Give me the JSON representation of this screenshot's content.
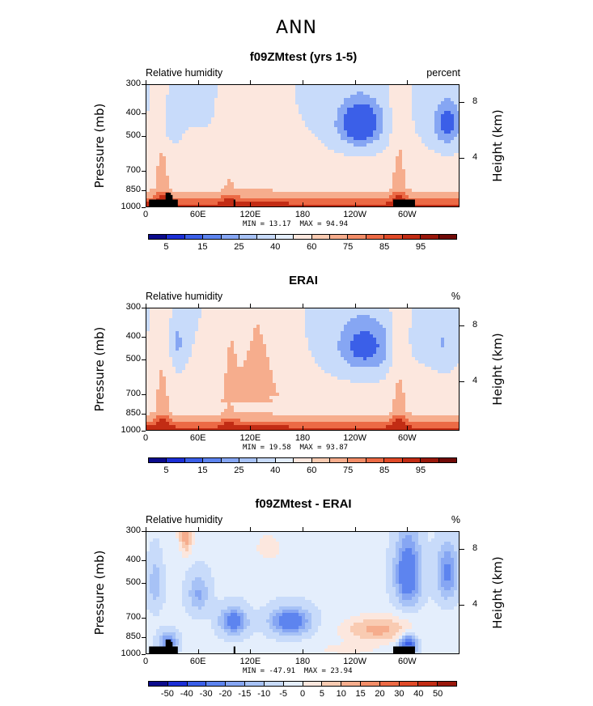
{
  "page_title": "ANN",
  "chart_data": [
    {
      "type": "heatmap",
      "title": "f09ZMtest (yrs 1-5)",
      "variable_label": "Relative humidity",
      "units_label": "percent",
      "ylabel": "Pressure (mb)",
      "ylabel_right": "Height (km)",
      "y_ticks": [
        "300",
        "400",
        "500",
        "700",
        "850",
        "1000"
      ],
      "y_ticks_right": [
        "8",
        "4"
      ],
      "x_ticks": [
        "0",
        "60E",
        "120E",
        "180",
        "120W",
        "60W"
      ],
      "min_label": "MIN =",
      "min_value": "13.17",
      "max_label": "MAX =",
      "max_value": "94.94",
      "colorbar_levels": [
        "5",
        "15",
        "25",
        "40",
        "60",
        "75",
        "85",
        "95"
      ],
      "colorbar_colors": [
        "#0b0b8c",
        "#1c2fd6",
        "#3b5fe8",
        "#5d84ef",
        "#86a6f3",
        "#a7c2f6",
        "#c8dbfa",
        "#e4eefc",
        "#fce7de",
        "#f9cbb2",
        "#f6ad8d",
        "#f28d68",
        "#ec6a45",
        "#e04a28",
        "#c22c14",
        "#9a180b",
        "#710a07"
      ],
      "features": [
        {
          "name": "upper-trop-dry-east-pacific",
          "x_lon": 245,
          "p_mb": 430,
          "value": 13
        },
        {
          "name": "upper-trop-dry-atlantic",
          "x_lon": 340,
          "p_mb": 430,
          "value": 20
        },
        {
          "name": "upper-trop-dry-africa",
          "x_lon": 25,
          "p_mb": 420,
          "value": 30
        },
        {
          "name": "boundary-layer-moist-pacific",
          "x_lon": 200,
          "p_mb": 960,
          "value": 92
        },
        {
          "name": "boundary-layer-moist-indian",
          "x_lon": 80,
          "p_mb": 960,
          "value": 90
        }
      ]
    },
    {
      "type": "heatmap",
      "title": "ERAI",
      "variable_label": "Relative humidity",
      "units_label": "%",
      "ylabel": "Pressure (mb)",
      "ylabel_right": "Height (km)",
      "y_ticks": [
        "300",
        "400",
        "500",
        "700",
        "850",
        "1000"
      ],
      "y_ticks_right": [
        "8",
        "4"
      ],
      "x_ticks": [
        "0",
        "60E",
        "120E",
        "180",
        "120W",
        "60W"
      ],
      "min_label": "MIN =",
      "min_value": "19.58",
      "max_label": "MAX =",
      "max_value": "93.87",
      "colorbar_levels": [
        "5",
        "15",
        "25",
        "40",
        "60",
        "75",
        "85",
        "95"
      ],
      "colorbar_colors": [
        "#0b0b8c",
        "#1c2fd6",
        "#3b5fe8",
        "#5d84ef",
        "#86a6f3",
        "#a7c2f6",
        "#c8dbfa",
        "#e4eefc",
        "#fce7de",
        "#f9cbb2",
        "#f6ad8d",
        "#f28d68",
        "#ec6a45",
        "#e04a28",
        "#c22c14",
        "#9a180b",
        "#710a07"
      ],
      "features": [
        {
          "name": "upper-trop-dry-east-pacific",
          "x_lon": 250,
          "p_mb": 430,
          "value": 20
        },
        {
          "name": "upper-trop-dry-africa",
          "x_lon": 35,
          "p_mb": 420,
          "value": 30
        },
        {
          "name": "upper-trop-dry-atlantic",
          "x_lon": 340,
          "p_mb": 430,
          "value": 35
        },
        {
          "name": "boundary-layer-moist-pacific",
          "x_lon": 200,
          "p_mb": 960,
          "value": 90
        }
      ]
    },
    {
      "type": "heatmap",
      "title": "f09ZMtest - ERAI",
      "variable_label": "Relative humidity",
      "units_label": "%",
      "ylabel": "Pressure (mb)",
      "ylabel_right": "Height (km)",
      "y_ticks": [
        "300",
        "400",
        "500",
        "700",
        "850",
        "1000"
      ],
      "y_ticks_right": [
        "8",
        "4"
      ],
      "x_ticks": [
        "0",
        "60E",
        "120E",
        "180",
        "120W",
        "60W"
      ],
      "min_label": "MIN =",
      "min_value": "-47.91",
      "max_label": "MAX =",
      "max_value": "23.94",
      "colorbar_levels": [
        "-50",
        "-40",
        "-30",
        "-20",
        "-15",
        "-10",
        "-5",
        "0",
        "5",
        "10",
        "15",
        "20",
        "30",
        "40",
        "50"
      ],
      "colorbar_colors": [
        "#0b0b8c",
        "#1c2fd6",
        "#3b5fe8",
        "#5d84ef",
        "#86a6f3",
        "#a7c2f6",
        "#c8dbfa",
        "#e4eefc",
        "#fce7de",
        "#f9cbb2",
        "#f6ad8d",
        "#f28d68",
        "#ec6a45",
        "#e04a28",
        "#c22c14",
        "#9a180b"
      ],
      "features": [
        {
          "name": "neg-anomaly-west-pacific-700",
          "x_lon": 100,
          "p_mb": 720,
          "value": -25
        },
        {
          "name": "neg-anomaly-dateline-700",
          "x_lon": 165,
          "p_mb": 720,
          "value": -25
        },
        {
          "name": "neg-anomaly-south-america",
          "x_lon": 300,
          "p_mb": 450,
          "value": -25
        },
        {
          "name": "pos-anomaly-east-pacific",
          "x_lon": 265,
          "p_mb": 780,
          "value": 10
        },
        {
          "name": "pos-anomaly-africa-upper",
          "x_lon": 45,
          "p_mb": 310,
          "value": 15
        }
      ]
    }
  ]
}
